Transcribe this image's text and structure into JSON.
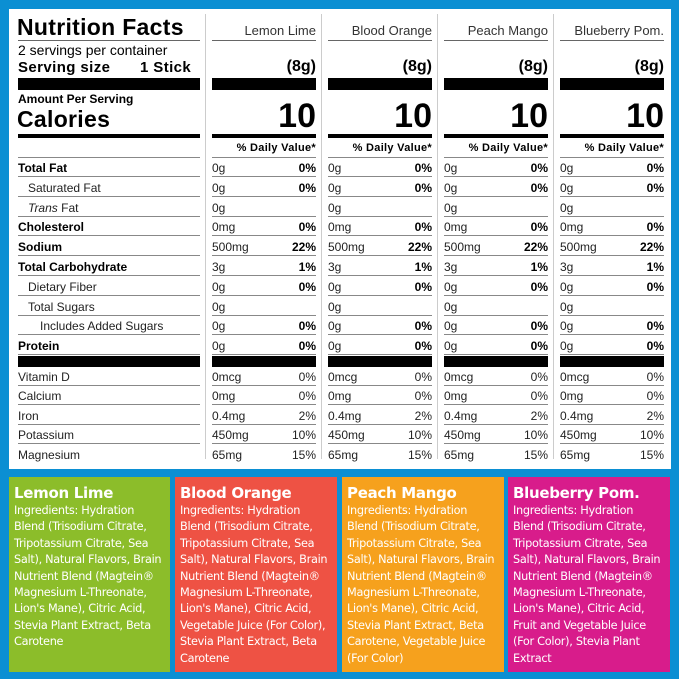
{
  "label": {
    "title": "Nutrition Facts",
    "servings": "2 servings per container",
    "serving_size_label": "Serving size",
    "serving_size_value": "1 Stick",
    "amount_per_serving": "Amount Per Serving",
    "calories_label": "Calories",
    "dv_header": "% Daily Value*"
  },
  "products": [
    {
      "name": "Lemon Lime",
      "serving_g": "(8g)",
      "calories": "10",
      "color": "#8cbd2a",
      "box_title": "Lemon Lime",
      "ingredients_label": "Ingredients:",
      "ingredients": "Hydration Blend (Trisodium Citrate, Tripotassium Citrate, Sea Salt), Natural Flavors, Brain Nutrient Blend (Magtein® Magnesium L-Threonate, Lion's Mane), Citric Acid, Stevia Plant Extract, Beta Carotene"
    },
    {
      "name": "Blood Orange",
      "serving_g": "(8g)",
      "calories": "10",
      "color": "#ee5244",
      "box_title": "Blood Orange",
      "ingredients_label": "Ingredients:",
      "ingredients": "Hydration Blend (Trisodium Citrate, Tripotassium Citrate, Sea Salt), Natural Flavors, Brain Nutrient Blend (Magtein® Magnesium L-Threonate, Lion's Mane), Citric Acid, Vegetable Juice (For Color), Stevia Plant Extract, Beta Carotene"
    },
    {
      "name": "Peach Mango",
      "serving_g": "(8g)",
      "calories": "10",
      "color": "#f6a11d",
      "box_title": "Peach Mango",
      "ingredients_label": "Ingredients:",
      "ingredients": "Hydration Blend (Trisodium Citrate, Tripotassium Citrate, Sea Salt), Natural Flavors, Brain Nutrient Blend (Magtein® Magnesium L-Threonate, Lion's Mane), Citric Acid, Stevia Plant Extract, Beta Carotene, Vegetable Juice (For Color)"
    },
    {
      "name": "Blueberry Pom.",
      "serving_g": "(8g)",
      "calories": "10",
      "color": "#d81c8b",
      "box_title": "Blueberry Pom.",
      "ingredients_label": "Ingredients:",
      "ingredients": "Hydration Blend (Trisodium Citrate, Tripotassium Citrate, Sea Salt), Natural Flavors, Brain Nutrient Blend (Magtein® Magnesium L-Threonate, Lion's Mane), Citric Acid, Fruit and Vegetable Juice (For Color), Stevia Plant Extract"
    }
  ],
  "nutrients": [
    {
      "name": "Total Fat",
      "bold": true,
      "indent": 0,
      "amount": "0g",
      "dv": "0%"
    },
    {
      "name": "Saturated Fat",
      "indent": 1,
      "amount": "0g",
      "dv": "0%"
    },
    {
      "name_italic": "Trans",
      "name": " Fat",
      "indent": 1,
      "amount": "0g",
      "dv": ""
    },
    {
      "name": "Cholesterol",
      "bold": true,
      "indent": 0,
      "amount": "0mg",
      "dv": "0%"
    },
    {
      "name": "Sodium",
      "bold": true,
      "indent": 0,
      "amount": "500mg",
      "dv": "22%"
    },
    {
      "name": "Total Carbohydrate",
      "bold": true,
      "indent": 0,
      "amount": "3g",
      "dv": "1%"
    },
    {
      "name": "Dietary Fiber",
      "indent": 1,
      "amount": "0g",
      "dv": "0%"
    },
    {
      "name": "Total Sugars",
      "indent": 1,
      "amount": "0g",
      "dv": ""
    },
    {
      "name": "Includes Added Sugars",
      "indent": 2,
      "amount": "0g",
      "dv": "0%"
    },
    {
      "name": "Protein",
      "bold": true,
      "indent": 0,
      "amount": "0g",
      "dv": "0%"
    }
  ],
  "vitamins": [
    {
      "name": "Vitamin D",
      "amount": "0mcg",
      "dv": "0%"
    },
    {
      "name": "Calcium",
      "amount": "0mg",
      "dv": "0%"
    },
    {
      "name": "Iron",
      "amount": "0.4mg",
      "dv": "2%"
    },
    {
      "name": "Potassium",
      "amount": "450mg",
      "dv": "10%"
    },
    {
      "name": "Magnesium",
      "amount": "65mg",
      "dv": "15%"
    }
  ]
}
